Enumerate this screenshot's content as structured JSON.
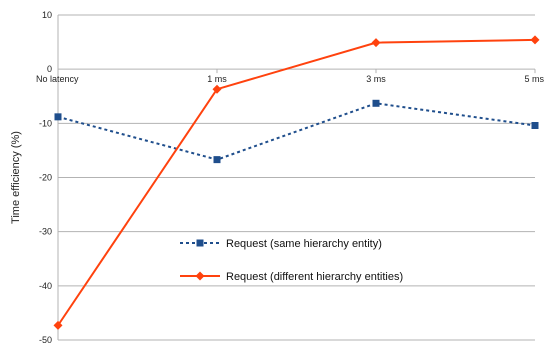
{
  "chart_data": {
    "type": "line",
    "categories": [
      "No latency",
      "1 ms",
      "3 ms",
      "5 ms"
    ],
    "ylabel": "Time efficiency (%)",
    "ylim": [
      -50,
      10
    ],
    "yticks": [
      10,
      0,
      -10,
      -20,
      -30,
      -40,
      -50
    ],
    "grid": "horizontal",
    "legend_position": "center-left",
    "series": [
      {
        "name": "Request (same hierarchy entity)",
        "values": [
          -8.8,
          -16.7,
          -6.3,
          -10.4
        ],
        "color": "#1f4e8c",
        "line_style": "dotted",
        "marker": "square"
      },
      {
        "name": "Request (different hierarchy entities)",
        "values": [
          -47.3,
          -3.7,
          4.9,
          5.4
        ],
        "color": "#ff420e",
        "line_style": "solid",
        "marker": "diamond"
      }
    ]
  }
}
